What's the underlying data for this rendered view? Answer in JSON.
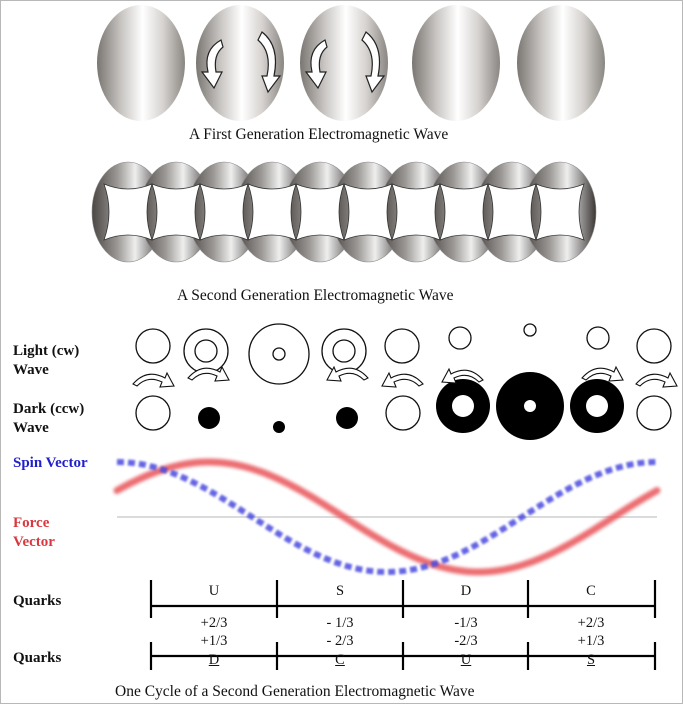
{
  "captions": {
    "first_gen": "A First Generation Electromagnetic Wave",
    "second_gen": "A Second Generation Electromagnetic Wave",
    "cycle": "One Cycle of a Second  Generation Electromagnetic Wave"
  },
  "labels": {
    "light_line1": "Light (cw)",
    "light_line2": "Wave",
    "dark_line1": "Dark (ccw)",
    "dark_line2": "Wave",
    "spin_vector": "Spin Vector",
    "force_line1": "Force",
    "force_line2": "Vector",
    "quarks_top": "Quarks",
    "quarks_bottom": "Quarks"
  },
  "quarks": [
    {
      "name": "U",
      "charge_top": "+2/3",
      "charge_bottom": "+1/3",
      "partner": "D"
    },
    {
      "name": "S",
      "charge_top": "- 1/3",
      "charge_bottom": "- 2/3",
      "partner": "C"
    },
    {
      "name": "D",
      "charge_top": "-1/3",
      "charge_bottom": "-2/3",
      "partner": "U"
    },
    {
      "name": "C",
      "charge_top": "+2/3",
      "charge_bottom": "+1/3",
      "partner": "S"
    }
  ],
  "colors": {
    "spin_vector": "#1f1fcc",
    "force_vector": "#d9383f",
    "spin_curve": "#4a4adf",
    "force_curve": "#e8545a",
    "baseline": "#cfcfcf"
  }
}
